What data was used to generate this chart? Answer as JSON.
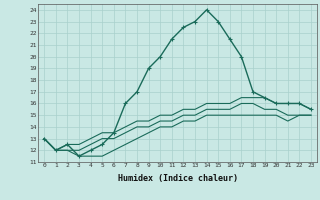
{
  "xlabel": "Humidex (Indice chaleur)",
  "ylabel": "",
  "xlim": [
    -0.5,
    23.5
  ],
  "ylim": [
    11,
    24.5
  ],
  "bg_color": "#c9e8e4",
  "grid_color": "#a8d0cc",
  "line_color": "#1a6b5a",
  "x_ticks": [
    0,
    1,
    2,
    3,
    4,
    5,
    6,
    7,
    8,
    9,
    10,
    11,
    12,
    13,
    14,
    15,
    16,
    17,
    18,
    19,
    20,
    21,
    22,
    23
  ],
  "y_ticks": [
    11,
    12,
    13,
    14,
    15,
    16,
    17,
    18,
    19,
    20,
    21,
    22,
    23,
    24
  ],
  "main_line": {
    "x": [
      0,
      1,
      2,
      3,
      4,
      5,
      6,
      7,
      8,
      9,
      10,
      11,
      12,
      13,
      14,
      15,
      16,
      17,
      18,
      19,
      20,
      21,
      22,
      23
    ],
    "y": [
      13,
      12,
      12.5,
      11.5,
      12,
      12.5,
      13.5,
      16,
      17,
      19,
      20,
      21.5,
      22.5,
      23,
      24,
      23,
      21.5,
      20,
      17,
      16.5,
      16,
      16,
      16,
      15.5
    ]
  },
  "line2": {
    "x": [
      0,
      1,
      2,
      3,
      4,
      5,
      6,
      7,
      8,
      9,
      10,
      11,
      12,
      13,
      14,
      15,
      16,
      17,
      18,
      19,
      20,
      21,
      22,
      23
    ],
    "y": [
      13,
      12,
      12.5,
      12.5,
      13,
      13.5,
      13.5,
      14,
      14.5,
      14.5,
      15,
      15,
      15.5,
      15.5,
      16,
      16,
      16,
      16.5,
      16.5,
      16.5,
      16,
      16,
      16,
      15.5
    ]
  },
  "line3": {
    "x": [
      0,
      1,
      2,
      3,
      4,
      5,
      6,
      7,
      8,
      9,
      10,
      11,
      12,
      13,
      14,
      15,
      16,
      17,
      18,
      19,
      20,
      21,
      22,
      23
    ],
    "y": [
      13,
      12,
      12,
      12,
      12.5,
      13,
      13,
      13.5,
      14,
      14,
      14.5,
      14.5,
      15,
      15,
      15.5,
      15.5,
      15.5,
      16,
      16,
      15.5,
      15.5,
      15,
      15,
      15
    ]
  },
  "line4": {
    "x": [
      0,
      1,
      2,
      3,
      4,
      5,
      6,
      7,
      8,
      9,
      10,
      11,
      12,
      13,
      14,
      15,
      16,
      17,
      18,
      19,
      20,
      21,
      22,
      23
    ],
    "y": [
      13,
      12,
      12,
      11.5,
      11.5,
      11.5,
      12,
      12.5,
      13,
      13.5,
      14,
      14,
      14.5,
      14.5,
      15,
      15,
      15,
      15,
      15,
      15,
      15,
      14.5,
      15,
      15
    ]
  }
}
